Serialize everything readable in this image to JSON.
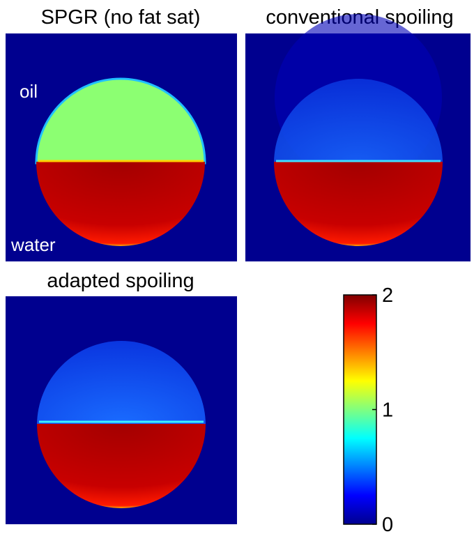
{
  "panels": [
    {
      "title": "SPGR (no fat sat)",
      "labels": [
        "oil",
        "water"
      ]
    },
    {
      "title": "conventional spoiling"
    },
    {
      "title": "adapted spoiling"
    }
  ],
  "colorbar": {
    "lim": [
      0,
      2
    ],
    "ticks": [
      0,
      1,
      2
    ]
  }
}
